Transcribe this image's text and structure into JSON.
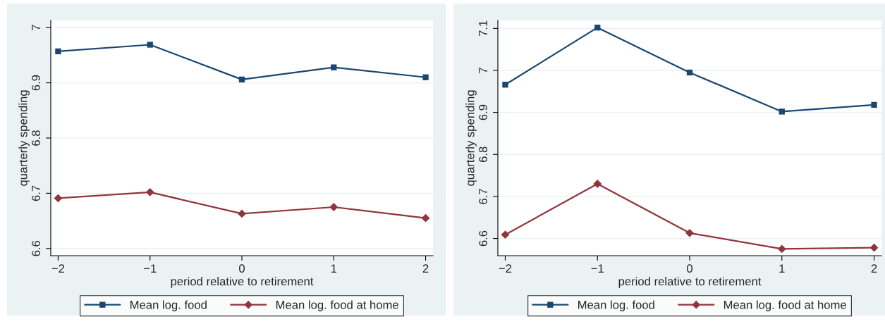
{
  "chart_data": [
    {
      "type": "line",
      "xlabel": "period relative to retirement",
      "ylabel": "quarterly spending",
      "x": [
        -2,
        -1,
        0,
        1,
        2
      ],
      "series": [
        {
          "name": "Mean log. food",
          "color": "#1a476f",
          "marker": "square",
          "values": [
            6.957,
            6.969,
            6.906,
            6.928,
            6.91
          ]
        },
        {
          "name": "Mean log. food at home",
          "color": "#90353b",
          "marker": "diamond",
          "values": [
            6.691,
            6.702,
            6.663,
            6.675,
            6.655
          ]
        }
      ],
      "xlim": [
        -2.08,
        2.08
      ],
      "xticks": [
        -2,
        -1,
        0,
        1,
        2
      ],
      "ylim": [
        6.587,
        7.013
      ],
      "yticks": [
        6.6,
        6.7,
        6.8,
        6.9,
        7
      ],
      "grid": "y",
      "legend": "bottom"
    },
    {
      "type": "line",
      "xlabel": "period relative to retirement",
      "ylabel": "quarterly spending",
      "x": [
        -2,
        -1,
        0,
        1,
        2
      ],
      "series": [
        {
          "name": "Mean log. food",
          "color": "#1a476f",
          "marker": "square",
          "values": [
            6.966,
            7.102,
            6.995,
            6.902,
            6.918
          ]
        },
        {
          "name": "Mean log. food at home",
          "color": "#90353b",
          "marker": "diamond",
          "values": [
            6.609,
            6.73,
            6.613,
            6.575,
            6.578
          ]
        }
      ],
      "xlim": [
        -2.08,
        2.08
      ],
      "xticks": [
        -2,
        -1,
        0,
        1,
        2
      ],
      "ylim": [
        6.559,
        7.119
      ],
      "yticks": [
        6.6,
        6.7,
        6.8,
        6.9,
        7,
        7.1
      ],
      "grid": "y",
      "legend": "bottom"
    }
  ]
}
